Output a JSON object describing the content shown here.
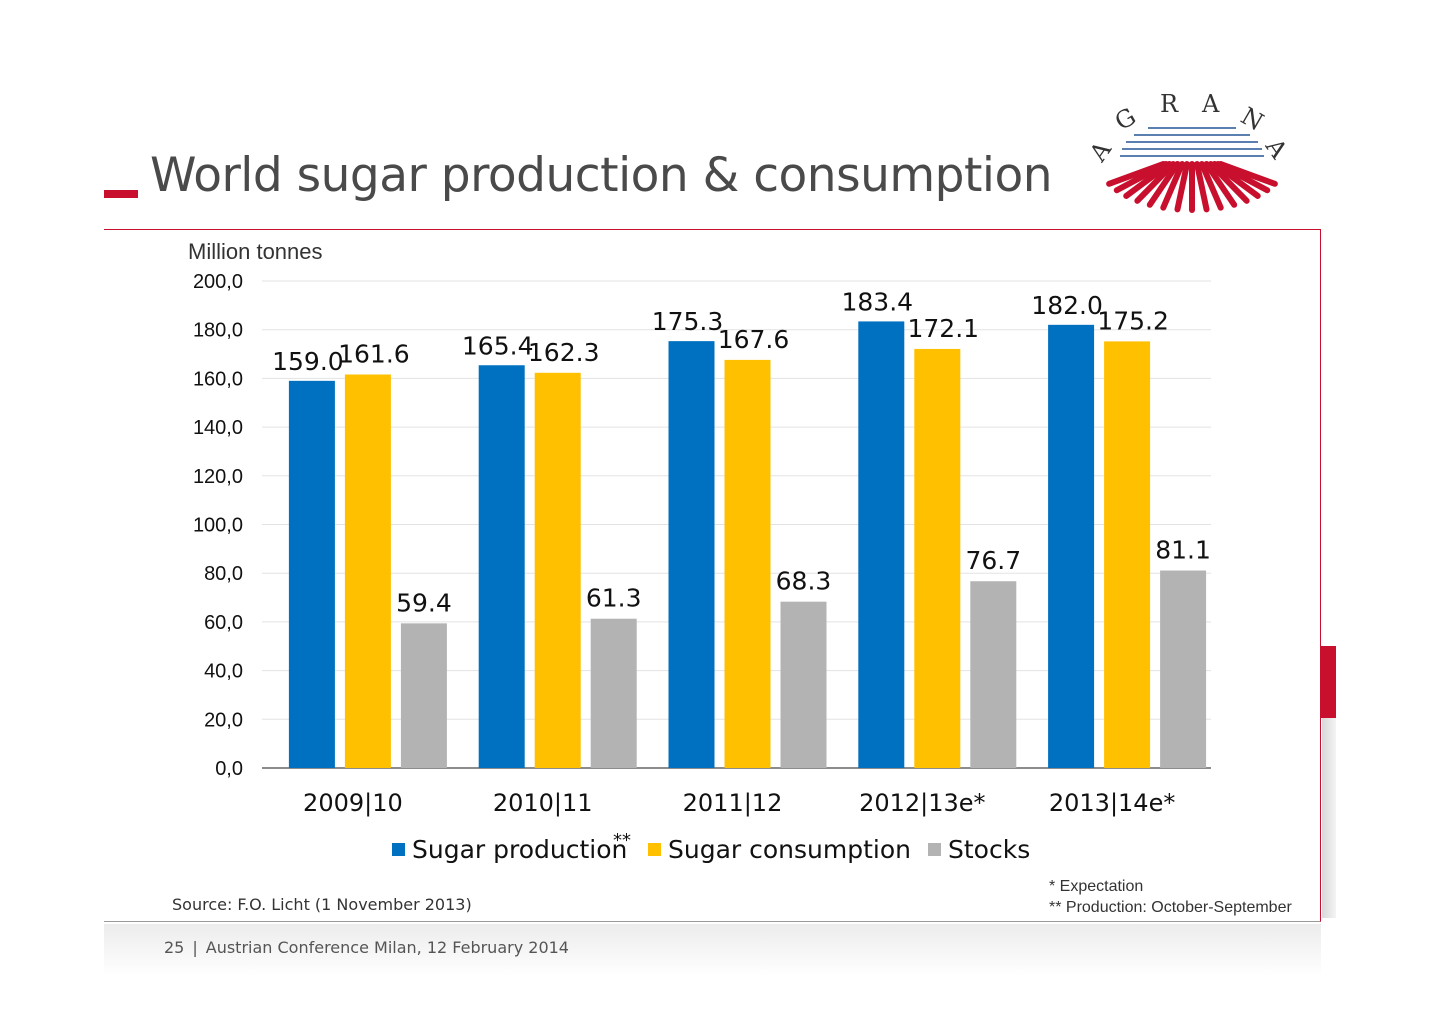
{
  "slide": {
    "title": "World sugar production & consumption",
    "source": "Source: F.O. Licht (1 November 2013)",
    "note_expectation": "* Expectation",
    "note_production": "** Production: October-September",
    "footer_page": "25",
    "footer_separator": "|",
    "footer_text": "Austrian Conference Milan, 12 February 2014"
  },
  "logo": {
    "name": "AGRANA",
    "letters": [
      "A",
      "G",
      "R",
      "A",
      "N",
      "A"
    ]
  },
  "colors": {
    "accent_red": "#c8102e",
    "production": "#0070c0",
    "consumption": "#ffc000",
    "stocks": "#b3b3b3"
  },
  "chart_data": {
    "type": "bar",
    "ylabel": "Million tonnes",
    "ylim": [
      0,
      200
    ],
    "ytick_step": 20,
    "ytick_labels": [
      "0,0",
      "20,0",
      "40,0",
      "60,0",
      "80,0",
      "100,0",
      "120,0",
      "140,0",
      "160,0",
      "180,0",
      "200,0"
    ],
    "grid": true,
    "legend_position": "bottom",
    "categories": [
      "2009|10",
      "2010|11",
      "2011|12",
      "2012|13e*",
      "2013|14e*"
    ],
    "series": [
      {
        "name": "Sugar production",
        "legend_label": "Sugar production",
        "legend_marker": "**",
        "color": "#0070c0",
        "values": [
          159.0,
          165.4,
          175.3,
          183.4,
          182.0
        ],
        "labels": [
          "159.0",
          "165.4",
          "175.3",
          "183.4",
          "182.0"
        ]
      },
      {
        "name": "Sugar consumption",
        "legend_label": "Sugar consumption",
        "legend_marker": "",
        "color": "#ffc000",
        "values": [
          161.6,
          162.3,
          167.6,
          172.1,
          175.2
        ],
        "labels": [
          "161.6",
          "162.3",
          "167.6",
          "172.1",
          "175.2"
        ]
      },
      {
        "name": "Stocks",
        "legend_label": "Stocks",
        "legend_marker": "",
        "color": "#b3b3b3",
        "values": [
          59.4,
          61.3,
          68.3,
          76.7,
          81.1
        ],
        "labels": [
          "59.4",
          "61.3",
          "68.3",
          "76.7",
          "81.1"
        ]
      }
    ]
  }
}
